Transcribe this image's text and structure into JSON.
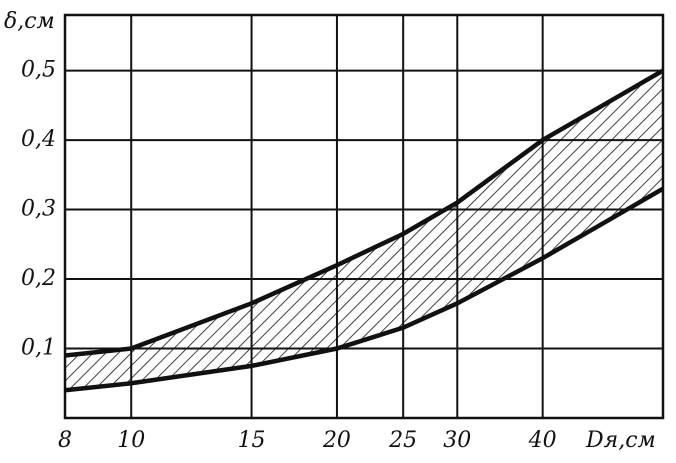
{
  "chart_data": {
    "type": "band",
    "y_label": "δ,см",
    "x_label": "Dя,см",
    "x": [
      8,
      10,
      15,
      20,
      25,
      30,
      40,
      60
    ],
    "series": [
      {
        "name": "upper",
        "color": "#111111",
        "values": [
          0.09,
          0.1,
          0.165,
          0.22,
          0.265,
          0.31,
          0.4,
          0.5
        ]
      },
      {
        "name": "lower",
        "color": "#111111",
        "values": [
          0.04,
          0.05,
          0.075,
          0.1,
          0.13,
          0.165,
          0.23,
          0.33
        ]
      }
    ],
    "xlim": [
      8,
      60
    ],
    "ylim": [
      0,
      0.58
    ],
    "xscale": "log",
    "grid": true,
    "xticks": [
      8,
      10,
      15,
      20,
      25,
      30,
      40
    ],
    "yticks": [
      {
        "value": 0.1,
        "label": "0,1"
      },
      {
        "value": 0.2,
        "label": "0,2"
      },
      {
        "value": 0.3,
        "label": "0,3"
      },
      {
        "value": 0.4,
        "label": "0,4"
      },
      {
        "value": 0.5,
        "label": "0,5"
      }
    ]
  }
}
